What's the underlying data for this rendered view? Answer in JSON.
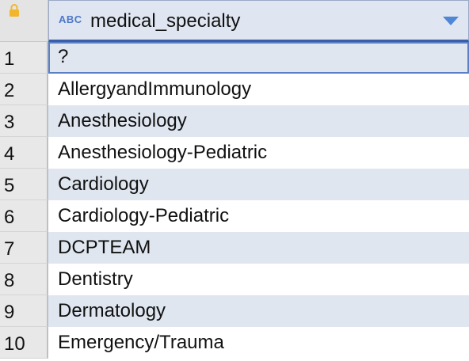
{
  "column": {
    "type_badge": "ABC",
    "name": "medical_specialty",
    "icons": {
      "lock": "lock-icon",
      "sort": "triangle-down-icon"
    }
  },
  "rows": [
    {
      "index": "1",
      "value": "?"
    },
    {
      "index": "2",
      "value": "AllergyandImmunology"
    },
    {
      "index": "3",
      "value": "Anesthesiology"
    },
    {
      "index": "4",
      "value": "Anesthesiology-Pediatric"
    },
    {
      "index": "5",
      "value": "Cardiology"
    },
    {
      "index": "6",
      "value": "Cardiology-Pediatric"
    },
    {
      "index": "7",
      "value": "DCPTEAM"
    },
    {
      "index": "8",
      "value": "Dentistry"
    },
    {
      "index": "9",
      "value": "Dermatology"
    },
    {
      "index": "10",
      "value": "Emergency/Trauma"
    }
  ],
  "colors": {
    "header_bg": "#dfe6f1",
    "header_accent": "#3a5ea8",
    "stripe": "#dfe6f0",
    "lock": "#f2b62e",
    "type_badge": "#4d78c9"
  }
}
